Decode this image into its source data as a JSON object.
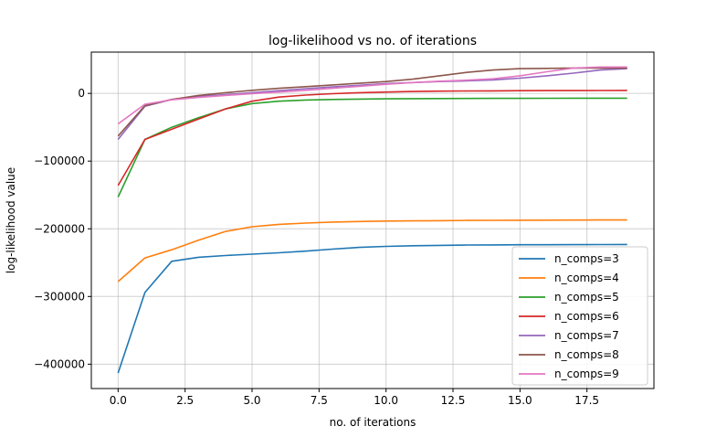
{
  "chart_data": {
    "type": "line",
    "title": "log-likelihood vs no. of iterations",
    "xlabel": "no. of iterations",
    "ylabel": "log-likelihood value",
    "xlim": [
      -1.0,
      20.0
    ],
    "ylim": [
      -436000,
      61000
    ],
    "grid": true,
    "legend_position": "lower-right",
    "x_ticks": [
      0,
      2.5,
      5,
      7.5,
      10,
      12.5,
      15,
      17.5
    ],
    "x_tick_labels": [
      "0.0",
      "2.5",
      "5.0",
      "7.5",
      "10.0",
      "12.5",
      "15.0",
      "17.5"
    ],
    "y_ticks": [
      -400000,
      -300000,
      -200000,
      -100000,
      0
    ],
    "y_tick_labels": [
      "−400000",
      "−300000",
      "−200000",
      "−100000",
      "0"
    ],
    "x": [
      0,
      1,
      2,
      3,
      4,
      5,
      6,
      7,
      8,
      9,
      10,
      11,
      12,
      13,
      14,
      15,
      16,
      17,
      18,
      19
    ],
    "series": [
      {
        "name": "n_comps=3",
        "color": "#1f77b4",
        "values": [
          -413000,
          -294000,
          -248000,
          -242000,
          -239500,
          -237500,
          -235500,
          -233000,
          -230000,
          -227500,
          -226000,
          -225000,
          -224500,
          -224000,
          -223800,
          -223600,
          -223500,
          -223400,
          -223300,
          -223200
        ]
      },
      {
        "name": "n_comps=4",
        "color": "#ff7f0e",
        "values": [
          -278000,
          -243000,
          -231000,
          -217000,
          -204000,
          -197000,
          -193500,
          -191500,
          -190000,
          -189200,
          -188600,
          -188300,
          -188000,
          -187700,
          -187500,
          -187300,
          -187200,
          -187100,
          -187000,
          -186900
        ]
      },
      {
        "name": "n_comps=5",
        "color": "#2ca02c",
        "values": [
          -153000,
          -68000,
          -50000,
          -36000,
          -23000,
          -15000,
          -11500,
          -9800,
          -8900,
          -8400,
          -8000,
          -7800,
          -7600,
          -7500,
          -7400,
          -7300,
          -7200,
          -7100,
          -7000,
          -7000
        ]
      },
      {
        "name": "n_comps=6",
        "color": "#d62728",
        "values": [
          -136000,
          -68000,
          -53000,
          -38000,
          -23000,
          -11500,
          -5500,
          -2500,
          -500,
          1000,
          2000,
          2800,
          3300,
          3600,
          3800,
          4000,
          4100,
          4200,
          4300,
          4400
        ]
      },
      {
        "name": "n_comps=7",
        "color": "#9467bd",
        "values": [
          -68000,
          -19000,
          -9000,
          -4500,
          -2000,
          1000,
          4000,
          7000,
          9500,
          12000,
          14500,
          16000,
          17500,
          18500,
          20000,
          22500,
          26000,
          30000,
          34500,
          36500
        ]
      },
      {
        "name": "n_comps=8",
        "color": "#8c564b",
        "values": [
          -63000,
          -18000,
          -9000,
          -3000,
          1000,
          4500,
          7500,
          10000,
          12500,
          15000,
          17500,
          21000,
          26000,
          31000,
          34500,
          36500,
          37000,
          37500,
          37500,
          37500
        ]
      },
      {
        "name": "n_comps=9",
        "color": "#e377c2",
        "values": [
          -45000,
          -16000,
          -9500,
          -6000,
          -3000,
          -500,
          2000,
          4500,
          7500,
          10500,
          13500,
          16000,
          18000,
          19500,
          21500,
          26000,
          32000,
          37500,
          39000,
          39000
        ]
      }
    ]
  }
}
